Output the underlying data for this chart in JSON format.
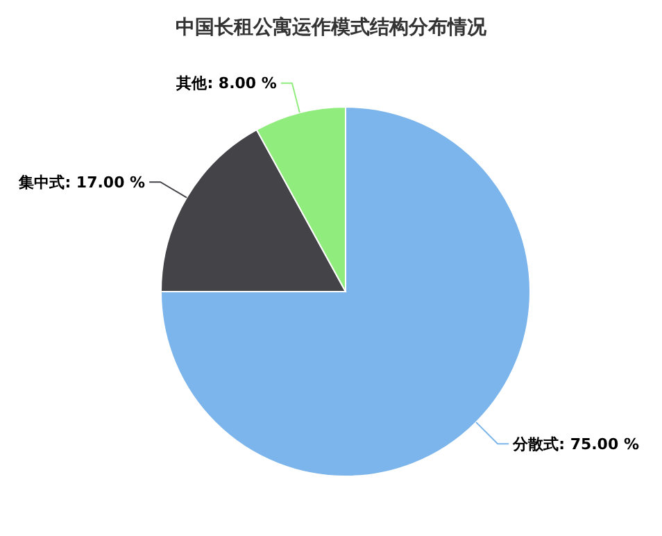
{
  "chart_data": {
    "type": "pie",
    "title": "中国长租公寓运作模式结构分布情况",
    "categories": [
      "分散式",
      "集中式",
      "其他"
    ],
    "values": [
      75,
      17,
      8
    ],
    "colors": [
      "#7cb5ec",
      "#434348",
      "#90ed7d"
    ],
    "value_labels": [
      "75.00 %",
      "17.00 %",
      "8.00 %"
    ]
  }
}
